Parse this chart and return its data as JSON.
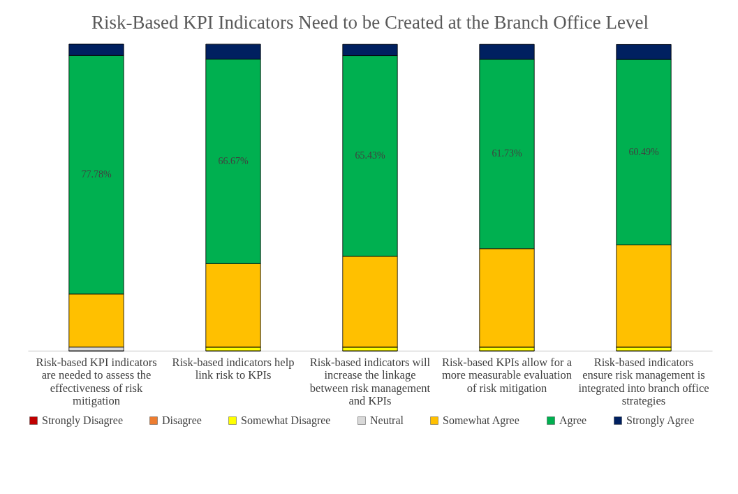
{
  "chart_data": {
    "type": "bar",
    "stacked": true,
    "title": "Risk-Based KPI Indicators Need to be Created at the Branch Office Level",
    "categories": [
      "Risk-based KPI indicators are needed to assess the effectiveness of risk mitigation",
      "Risk-based indicators help link risk to KPIs",
      "Risk-based indicators will increase the linkage between risk management and KPIs",
      "Risk-based KPIs allow for a more measurable evaluation of risk mitigation",
      "Risk-based indicators ensure risk management is integrated into branch office strategies"
    ],
    "ylim": [
      0,
      100
    ],
    "tick_labels": "x",
    "legend": "bottom",
    "series": [
      {
        "name": "Strongly Disagree",
        "color": "#c00000",
        "values": [
          0,
          0,
          0,
          0,
          0
        ]
      },
      {
        "name": "Disagree",
        "color": "#ed7d31",
        "values": [
          0,
          0,
          0,
          0,
          0
        ]
      },
      {
        "name": "Somewhat Disagree",
        "color": "#ffff00",
        "values": [
          0,
          1.2,
          1.2,
          1.2,
          1.2
        ]
      },
      {
        "name": "Neutral",
        "color": "#d9d9d9",
        "values": [
          1.2,
          0,
          0,
          0,
          0
        ]
      },
      {
        "name": "Somewhat Agree",
        "color": "#ffc000",
        "values": [
          17.3,
          27.2,
          29.6,
          32.1,
          33.3
        ]
      },
      {
        "name": "Agree",
        "color": "#00b050",
        "values": [
          77.78,
          66.67,
          65.43,
          61.73,
          60.49
        ],
        "value_labels": [
          "77.78%",
          "66.67%",
          "65.43%",
          "61.73%",
          "60.49%"
        ]
      },
      {
        "name": "Strongly Agree",
        "color": "#002060",
        "values": [
          3.7,
          4.9,
          3.7,
          4.9,
          4.9
        ]
      }
    ]
  }
}
